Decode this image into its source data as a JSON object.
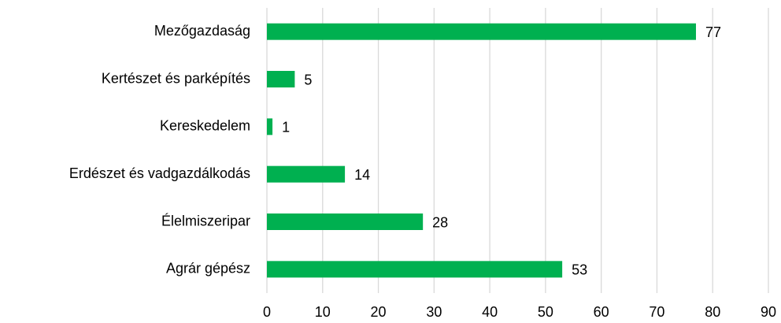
{
  "chart_data": {
    "type": "bar",
    "orientation": "horizontal",
    "categories": [
      "Mezőgazdaság",
      "Kertészet és parképítés",
      "Kereskedelem",
      "Erdészet és vadgazdálkodás",
      "Élelmiszeripar",
      "Agrár gépész"
    ],
    "values": [
      77,
      5,
      1,
      14,
      28,
      53
    ],
    "color": "#00b050",
    "xlim": [
      0,
      90
    ],
    "xticks": [
      0,
      10,
      20,
      30,
      40,
      50,
      60,
      70,
      80,
      90
    ],
    "grid": true
  }
}
